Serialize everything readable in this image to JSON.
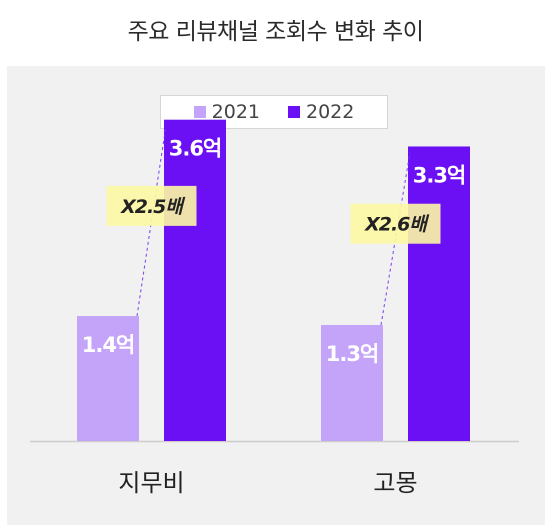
{
  "title": "주요 리뷰채널 조회수 변화 추이",
  "colors": {
    "s2021": "#c4a4f8",
    "s2022": "#6b0ff5",
    "callout_bg": "#fdf8a3",
    "axis": "#cccccc",
    "panel": "#f1f1f1"
  },
  "legend": [
    {
      "label": "2021",
      "color": "#c4a4f8"
    },
    {
      "label": "2022",
      "color": "#6b0ff5"
    }
  ],
  "chart_data": {
    "type": "bar",
    "categories": [
      "지무비",
      "고몽"
    ],
    "series": [
      {
        "name": "2021",
        "values": [
          1.4,
          1.3
        ],
        "labels": [
          "1.4억",
          "1.3억"
        ]
      },
      {
        "name": "2022",
        "values": [
          3.6,
          3.3
        ],
        "labels": [
          "3.6억",
          "3.3억"
        ]
      }
    ],
    "growth_labels": [
      "X2.5배",
      "X2.6배"
    ],
    "ylim": [
      0,
      4.0
    ],
    "legend_position": "top-center",
    "grid": false
  }
}
